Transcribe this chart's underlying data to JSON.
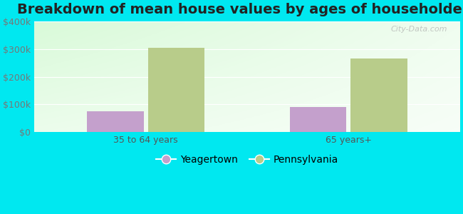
{
  "title": "Breakdown of mean house values by ages of householders",
  "categories": [
    "35 to 64 years",
    "65 years+"
  ],
  "series": {
    "Yeagertown": [
      75000,
      90000
    ],
    "Pennsylvania": [
      305000,
      265000
    ]
  },
  "bar_colors": {
    "Yeagertown": "#c4a0cc",
    "Pennsylvania": "#b8cc8a"
  },
  "ylim": [
    0,
    400000
  ],
  "yticks": [
    0,
    100000,
    200000,
    300000,
    400000
  ],
  "ytick_labels": [
    "$0",
    "$100k",
    "$200k",
    "$300k",
    "$400k"
  ],
  "background_color": "#00e8f0",
  "title_fontsize": 14,
  "tick_fontsize": 9,
  "legend_fontsize": 10,
  "bar_width": 0.28,
  "watermark": "City-Data.com"
}
